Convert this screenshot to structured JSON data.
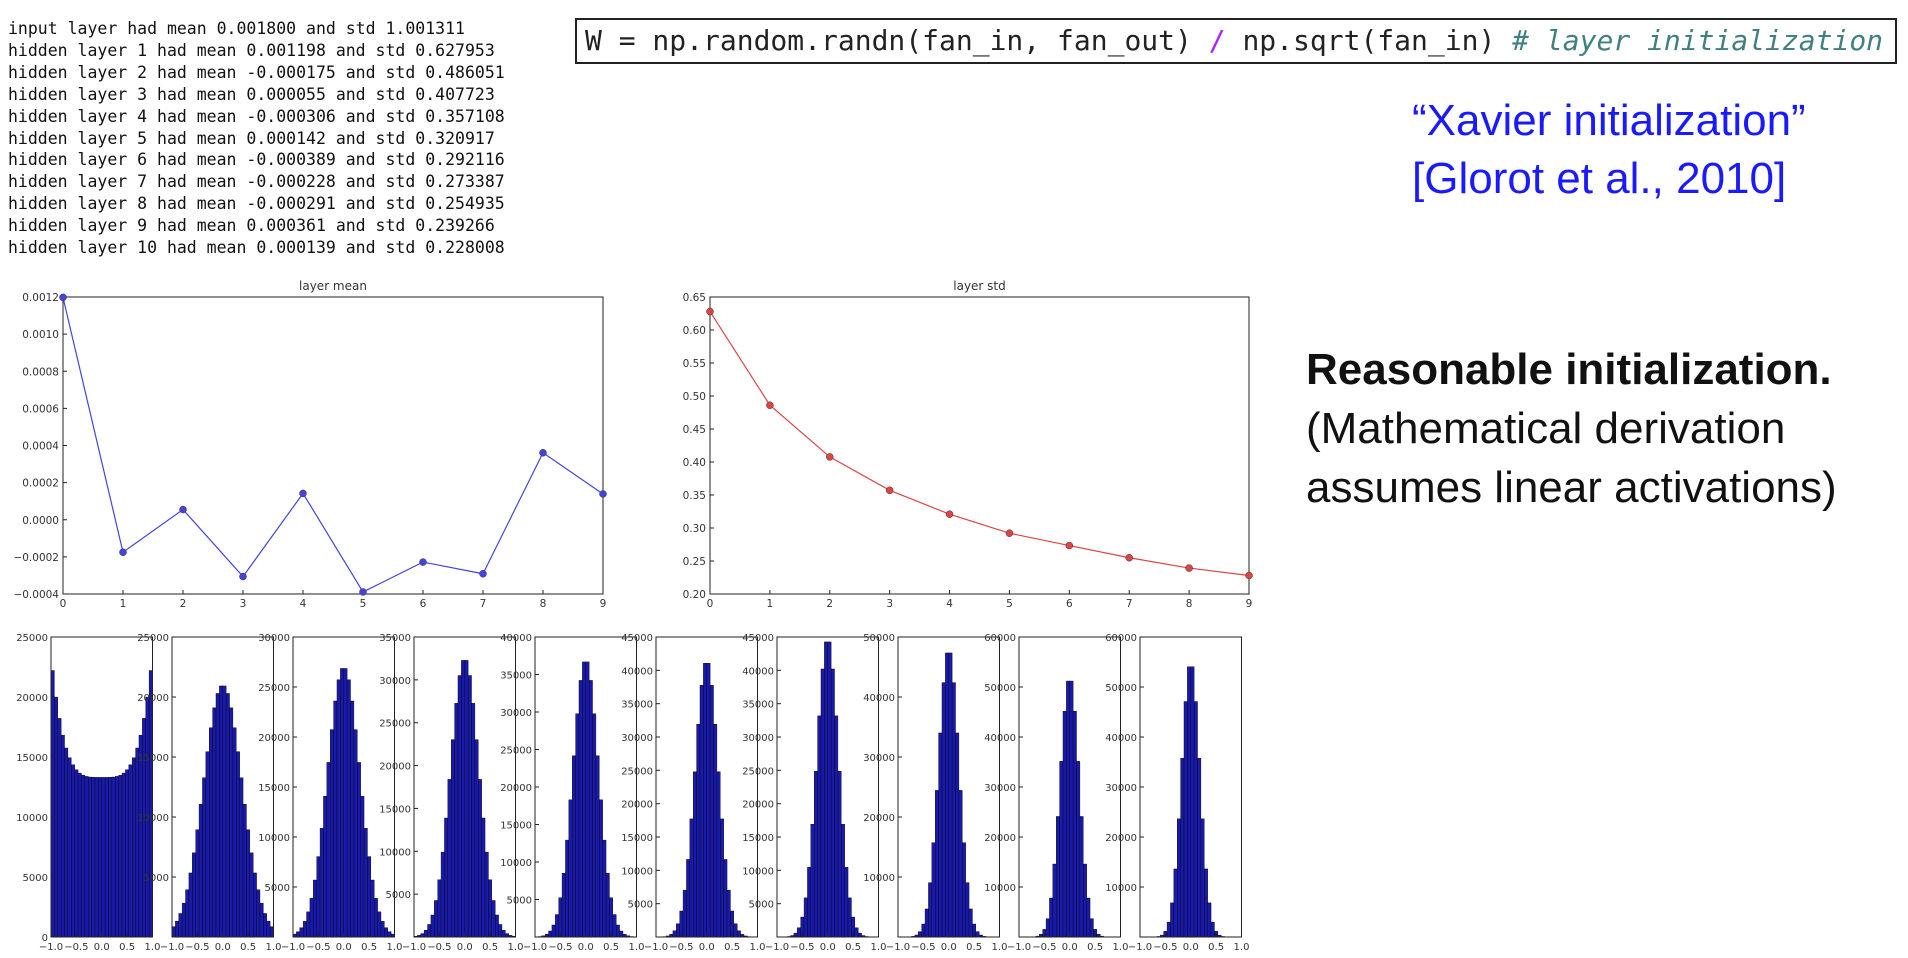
{
  "console_lines": [
    "input layer had mean 0.001800 and std 1.001311",
    "hidden layer 1 had mean 0.001198 and std 0.627953",
    "hidden layer 2 had mean -0.000175 and std 0.486051",
    "hidden layer 3 had mean 0.000055 and std 0.407723",
    "hidden layer 4 had mean -0.000306 and std 0.357108",
    "hidden layer 5 had mean 0.000142 and std 0.320917",
    "hidden layer 6 had mean -0.000389 and std 0.292116",
    "hidden layer 7 had mean -0.000228 and std 0.273387",
    "hidden layer 8 had mean -0.000291 and std 0.254935",
    "hidden layer 9 had mean 0.000361 and std 0.239266",
    "hidden layer 10 had mean 0.000139 and std 0.228008"
  ],
  "code": {
    "part1": "W = np.random.randn(fan_in, fan_out) ",
    "op": "/",
    "part2": " np.sqrt(fan_in) ",
    "comment": "# layer initialization"
  },
  "xavier": {
    "line1": "“Xavier initialization”",
    "line2": "[Glorot et al., 2010]"
  },
  "note": {
    "bold": "Reasonable initialization.",
    "line2": "(Mathematical derivation",
    "line3": "assumes linear activations)"
  },
  "colors": {
    "mean_line": "#4444dd",
    "std_line": "#dd4444",
    "hist_fill": "#1a1aaa",
    "xavier_text": "#1a1aff"
  },
  "chart_data": [
    {
      "type": "line",
      "title": "layer mean",
      "x": [
        0,
        1,
        2,
        3,
        4,
        5,
        6,
        7,
        8,
        9
      ],
      "y": [
        0.001198,
        -0.000175,
        5.5e-05,
        -0.000306,
        0.000142,
        -0.000389,
        -0.000228,
        -0.000291,
        0.000361,
        0.000139
      ],
      "xlim": [
        0,
        9
      ],
      "ylim": [
        -0.0004,
        0.0012
      ],
      "xticks": [
        "0",
        "1",
        "2",
        "3",
        "4",
        "5",
        "6",
        "7",
        "8",
        "9"
      ],
      "yticks": [
        "−0.0004",
        "−0.0002",
        "0.0000",
        "0.0002",
        "0.0004",
        "0.0006",
        "0.0008",
        "0.0010",
        "0.0012"
      ],
      "grid": false
    },
    {
      "type": "line",
      "title": "layer std",
      "x": [
        0,
        1,
        2,
        3,
        4,
        5,
        6,
        7,
        8,
        9
      ],
      "y": [
        0.627953,
        0.486051,
        0.407723,
        0.357108,
        0.320917,
        0.292116,
        0.273387,
        0.254935,
        0.239266,
        0.228008
      ],
      "xlim": [
        0,
        9
      ],
      "ylim": [
        0.2,
        0.65
      ],
      "xticks": [
        "0",
        "1",
        "2",
        "3",
        "4",
        "5",
        "6",
        "7",
        "8",
        "9"
      ],
      "yticks": [
        "0.20",
        "0.25",
        "0.30",
        "0.35",
        "0.40",
        "0.45",
        "0.50",
        "0.55",
        "0.60",
        "0.65"
      ],
      "grid": false
    },
    {
      "type": "bar",
      "description": "histograms of activations for hidden layers 1-10",
      "xlim": [
        -1,
        1
      ],
      "xticks": [
        "−1.0",
        "−0.5",
        "0.0",
        "0.5",
        "1.0"
      ],
      "histograms": [
        {
          "ymax": 25000,
          "yticks": [
            "0",
            "5000",
            "10000",
            "15000",
            "20000",
            "25000"
          ],
          "std": 0.628,
          "peak": 23500
        },
        {
          "ymax": 25000,
          "yticks": [
            "5000",
            "10000",
            "15000",
            "20000",
            "25000"
          ],
          "std": 0.486,
          "peak": 21000
        },
        {
          "ymax": 30000,
          "yticks": [
            "5000",
            "10000",
            "15000",
            "20000",
            "25000",
            "30000"
          ],
          "std": 0.408,
          "peak": 27000
        },
        {
          "ymax": 35000,
          "yticks": [
            "5000",
            "10000",
            "15000",
            "20000",
            "25000",
            "30000",
            "35000"
          ],
          "std": 0.357,
          "peak": 32500
        },
        {
          "ymax": 40000,
          "yticks": [
            "5000",
            "10000",
            "15000",
            "20000",
            "25000",
            "30000",
            "35000",
            "40000"
          ],
          "std": 0.321,
          "peak": 37000
        },
        {
          "ymax": 45000,
          "yticks": [
            "5000",
            "10000",
            "15000",
            "20000",
            "25000",
            "30000",
            "35000",
            "40000",
            "45000"
          ],
          "std": 0.292,
          "peak": 41500
        },
        {
          "ymax": 45000,
          "yticks": [
            "5000",
            "10000",
            "15000",
            "20000",
            "25000",
            "30000",
            "35000",
            "40000",
            "45000"
          ],
          "std": 0.273,
          "peak": 44800
        },
        {
          "ymax": 50000,
          "yticks": [
            "10000",
            "20000",
            "30000",
            "40000",
            "50000"
          ],
          "std": 0.255,
          "peak": 48000
        },
        {
          "ymax": 60000,
          "yticks": [
            "10000",
            "20000",
            "30000",
            "40000",
            "50000",
            "60000"
          ],
          "std": 0.239,
          "peak": 52000
        },
        {
          "ymax": 60000,
          "yticks": [
            "10000",
            "20000",
            "30000",
            "40000",
            "50000",
            "60000"
          ],
          "std": 0.228,
          "peak": 55000
        }
      ]
    }
  ]
}
